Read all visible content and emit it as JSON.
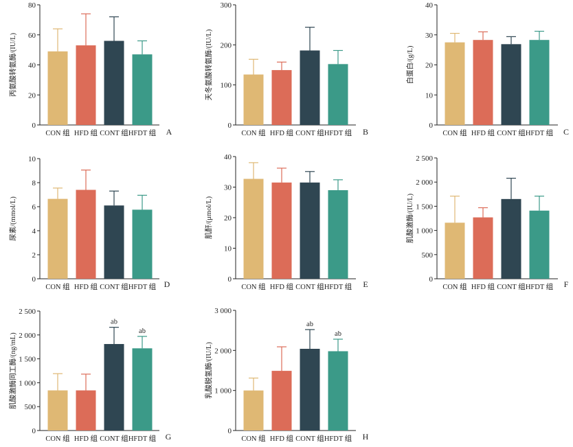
{
  "colors": {
    "CON": "#dfb874",
    "HFD": "#dc6c58",
    "CONT": "#2f4652",
    "HFDT": "#3b9a88",
    "axis": "#222222"
  },
  "chart_data": [
    {
      "type": "bar",
      "panel": "A",
      "ylabel": "丙氨酸转氨酶/(IU/L)",
      "categories": [
        "CON 组",
        "HFD 组",
        "CONT 组",
        "HFDT 组"
      ],
      "values": [
        49,
        53,
        56,
        47
      ],
      "errors": [
        15,
        21,
        16,
        9
      ],
      "annotations": [
        "",
        "",
        "",
        ""
      ],
      "ylim": [
        0,
        80
      ],
      "yticks": [
        0,
        20,
        40,
        60,
        80
      ],
      "yticklabels": [
        "0",
        "20",
        "40",
        "60",
        "80"
      ]
    },
    {
      "type": "bar",
      "panel": "B",
      "ylabel": "天冬氨酸转氨酶/(IU/L)",
      "categories": [
        "CON 组",
        "HFD 组",
        "CONT 组",
        "HFDT 组"
      ],
      "values": [
        126,
        137,
        186,
        152
      ],
      "errors": [
        38,
        20,
        58,
        34
      ],
      "annotations": [
        "",
        "",
        "",
        ""
      ],
      "ylim": [
        0,
        300
      ],
      "yticks": [
        0,
        100,
        200,
        300
      ],
      "yticklabels": [
        "0",
        "100",
        "200",
        "300"
      ]
    },
    {
      "type": "bar",
      "panel": "C",
      "ylabel": "白蛋白/(g/L)",
      "categories": [
        "CON 组",
        "HFD 组",
        "CONT 组",
        "HFDT 组"
      ],
      "values": [
        27.5,
        28.3,
        26.9,
        28.3
      ],
      "errors": [
        3.0,
        2.7,
        2.5,
        2.9
      ],
      "annotations": [
        "",
        "",
        "",
        ""
      ],
      "ylim": [
        0,
        40
      ],
      "yticks": [
        0,
        10,
        20,
        30,
        40
      ],
      "yticklabels": [
        "0",
        "10",
        "20",
        "30",
        "40"
      ]
    },
    {
      "type": "bar",
      "panel": "D",
      "ylabel": "尿素/(mmol/L)",
      "categories": [
        "CON 组",
        "HFD 组",
        "CONT 组",
        "HFDT 组"
      ],
      "values": [
        6.65,
        7.4,
        6.1,
        5.75
      ],
      "errors": [
        0.9,
        1.65,
        1.2,
        1.2
      ],
      "annotations": [
        "",
        "",
        "",
        ""
      ],
      "ylim": [
        0,
        10
      ],
      "yticks": [
        0,
        2,
        4,
        6,
        8,
        10
      ],
      "yticklabels": [
        "0",
        "2",
        "4",
        "6",
        "8",
        "10"
      ]
    },
    {
      "type": "bar",
      "panel": "E",
      "ylabel": "肌酐/(μmol/L)",
      "categories": [
        "CON 组",
        "HFD 组",
        "CONT 组",
        "HFDT 组"
      ],
      "values": [
        32.7,
        31.5,
        31.5,
        29.0
      ],
      "errors": [
        5.3,
        4.7,
        3.6,
        3.4
      ],
      "annotations": [
        "",
        "",
        "",
        ""
      ],
      "ylim": [
        0,
        40
      ],
      "yticks": [
        0,
        10,
        20,
        30,
        40
      ],
      "yticklabels": [
        "0",
        "10",
        "20",
        "30",
        "40"
      ]
    },
    {
      "type": "bar",
      "panel": "F",
      "ylabel": "肌酸激酶/(IU/L)",
      "categories": [
        "CON 组",
        "HFD 组",
        "CONT 组",
        "HFDT 组"
      ],
      "values": [
        1160,
        1270,
        1650,
        1410
      ],
      "errors": [
        550,
        200,
        430,
        300
      ],
      "annotations": [
        "",
        "",
        "",
        ""
      ],
      "ylim": [
        0,
        2500
      ],
      "yticks": [
        0,
        500,
        1000,
        1500,
        2000,
        2500
      ],
      "yticklabels": [
        "0",
        "500",
        "1 000",
        "1 500",
        "2 000",
        "2 500"
      ]
    },
    {
      "type": "bar",
      "panel": "G",
      "ylabel": "肌酸激酶同工酶/(ng/mL)",
      "categories": [
        "CON 组",
        "HFD 组",
        "CONT 组",
        "HFDT 组"
      ],
      "values": [
        840,
        840,
        1810,
        1720
      ],
      "errors": [
        350,
        340,
        350,
        250
      ],
      "annotations": [
        "",
        "",
        "ab",
        "ab"
      ],
      "ylim": [
        0,
        2500
      ],
      "yticks": [
        0,
        500,
        1000,
        1500,
        2000,
        2500
      ],
      "yticklabels": [
        "0",
        "500",
        "1 000",
        "1 500",
        "2 000",
        "2 500"
      ]
    },
    {
      "type": "bar",
      "panel": "H",
      "ylabel": "乳酸脱氢酶/(IU/L)",
      "categories": [
        "CON 组",
        "HFD 组",
        "CONT 组",
        "HFDT 组"
      ],
      "values": [
        1000,
        1490,
        2040,
        1980
      ],
      "errors": [
        310,
        600,
        480,
        300
      ],
      "annotations": [
        "",
        "",
        "ab",
        "ab"
      ],
      "ylim": [
        0,
        3000
      ],
      "yticks": [
        0,
        1000,
        2000,
        3000
      ],
      "yticklabels": [
        "0",
        "1 000",
        "2 000",
        "3 000"
      ]
    }
  ]
}
